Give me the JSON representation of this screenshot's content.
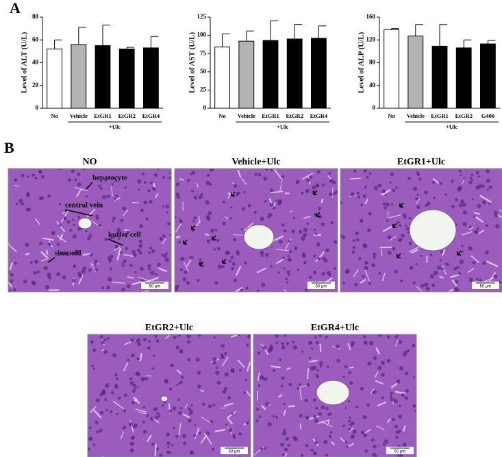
{
  "panel_a": {
    "label": "A"
  },
  "chart_data": [
    {
      "type": "bar",
      "ylabel": "Level of ALT (U/L)",
      "categories": [
        "No",
        "Vehicle",
        "EtGR1",
        "EtGR2",
        "EtGR4"
      ],
      "values": [
        52,
        56,
        55,
        52,
        53
      ],
      "errors": [
        8,
        15,
        18,
        1.5,
        10
      ],
      "colors": [
        "#ffffff",
        "#b3b3b3",
        "#000000",
        "#000000",
        "#000000"
      ],
      "ylim": [
        0,
        80
      ],
      "yticks": [
        0,
        20,
        40,
        60,
        80
      ],
      "group_label": "+Ulc"
    },
    {
      "type": "bar",
      "ylabel": "Level of AST (U/L)",
      "categories": [
        "No",
        "Vehicle",
        "EtGR1",
        "EtGR2",
        "EtGR4"
      ],
      "values": [
        84,
        92,
        93,
        95,
        96
      ],
      "errors": [
        18,
        14,
        27,
        20,
        17
      ],
      "colors": [
        "#ffffff",
        "#b3b3b3",
        "#000000",
        "#000000",
        "#000000"
      ],
      "ylim": [
        0,
        125
      ],
      "yticks": [
        0,
        25,
        50,
        75,
        100,
        125
      ],
      "group_label": "+Ulc"
    },
    {
      "type": "bar",
      "ylabel": "Level of ALP (U/L)",
      "categories": [
        "No",
        "Vehicle",
        "EtGR1",
        "EtGR2",
        "G400"
      ],
      "values": [
        138,
        127,
        109,
        106,
        113
      ],
      "errors": [
        2,
        20,
        38,
        14,
        6
      ],
      "colors": [
        "#ffffff",
        "#b3b3b3",
        "#000000",
        "#000000",
        "#000000"
      ],
      "ylim": [
        0,
        160
      ],
      "yticks": [
        0,
        40,
        80,
        120,
        160
      ],
      "group_label": "+Ulc"
    }
  ],
  "panel_b": {
    "label": "B",
    "images": [
      {
        "title": "NO",
        "annotations": [
          "hepatocyte",
          "central vein",
          "kuffer cell",
          "sinusoid"
        ],
        "scale_bar": "50 μm"
      },
      {
        "title": "Vehicle+Ulc",
        "scale_bar": "50 μm"
      },
      {
        "title": "EtGR1+Ulc",
        "scale_bar": "50 μm"
      },
      {
        "title": "EtGR2+Ulc",
        "scale_bar": "50 μm"
      },
      {
        "title": "EtGR4+Ulc",
        "scale_bar": "50 μm"
      }
    ]
  }
}
